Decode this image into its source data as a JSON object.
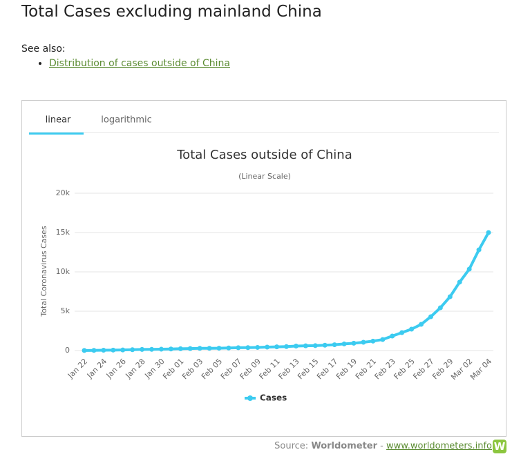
{
  "header": {
    "title": "Total Cases excluding mainland China"
  },
  "see_also": {
    "label": "See also:",
    "links": [
      "Distribution of cases outside of China"
    ]
  },
  "tabs": [
    "linear",
    "logarithmic"
  ],
  "chart_data": {
    "type": "line",
    "title": "Total Cases outside of China",
    "subtitle": "(Linear Scale)",
    "y_label": "Total Coronavirus Cases",
    "categories": [
      "Jan 22",
      null,
      "Jan 24",
      null,
      "Jan 26",
      null,
      "Jan 28",
      null,
      "Jan 30",
      null,
      "Feb 01",
      null,
      "Feb 03",
      null,
      "Feb 05",
      null,
      "Feb 07",
      null,
      "Feb 09",
      null,
      "Feb 11",
      null,
      "Feb 13",
      null,
      "Feb 15",
      null,
      "Feb 17",
      null,
      "Feb 19",
      null,
      "Feb 21",
      null,
      "Feb 23",
      null,
      "Feb 25",
      null,
      "Feb 27",
      null,
      "Feb 29",
      null,
      "Mar 02",
      null,
      "Mar 04"
    ],
    "series": [
      {
        "name": "Cases",
        "color": "#3ccbf0",
        "values": [
          10,
          20,
          40,
          60,
          80,
          110,
          140,
          150,
          170,
          200,
          230,
          250,
          280,
          290,
          300,
          330,
          360,
          370,
          400,
          440,
          470,
          500,
          570,
          600,
          630,
          680,
          740,
          840,
          930,
          1050,
          1200,
          1400,
          1840,
          2280,
          2720,
          3330,
          4300,
          5440,
          6840,
          8700,
          10350,
          12800,
          15000
        ]
      }
    ],
    "ylim": [
      0,
      20000
    ],
    "yticks": [
      0,
      {
        "value": 5000,
        "label": "5k"
      },
      {
        "value": 10000,
        "label": "10k"
      },
      {
        "value": 15000,
        "label": "15k"
      },
      {
        "value": 20000,
        "label": "20k"
      }
    ],
    "grid": true,
    "legend": "bottom"
  },
  "source": {
    "prefix": "Source:",
    "name": "Worldometer",
    "separator": "-",
    "link": "www.worldometers.info",
    "logo": "W"
  }
}
